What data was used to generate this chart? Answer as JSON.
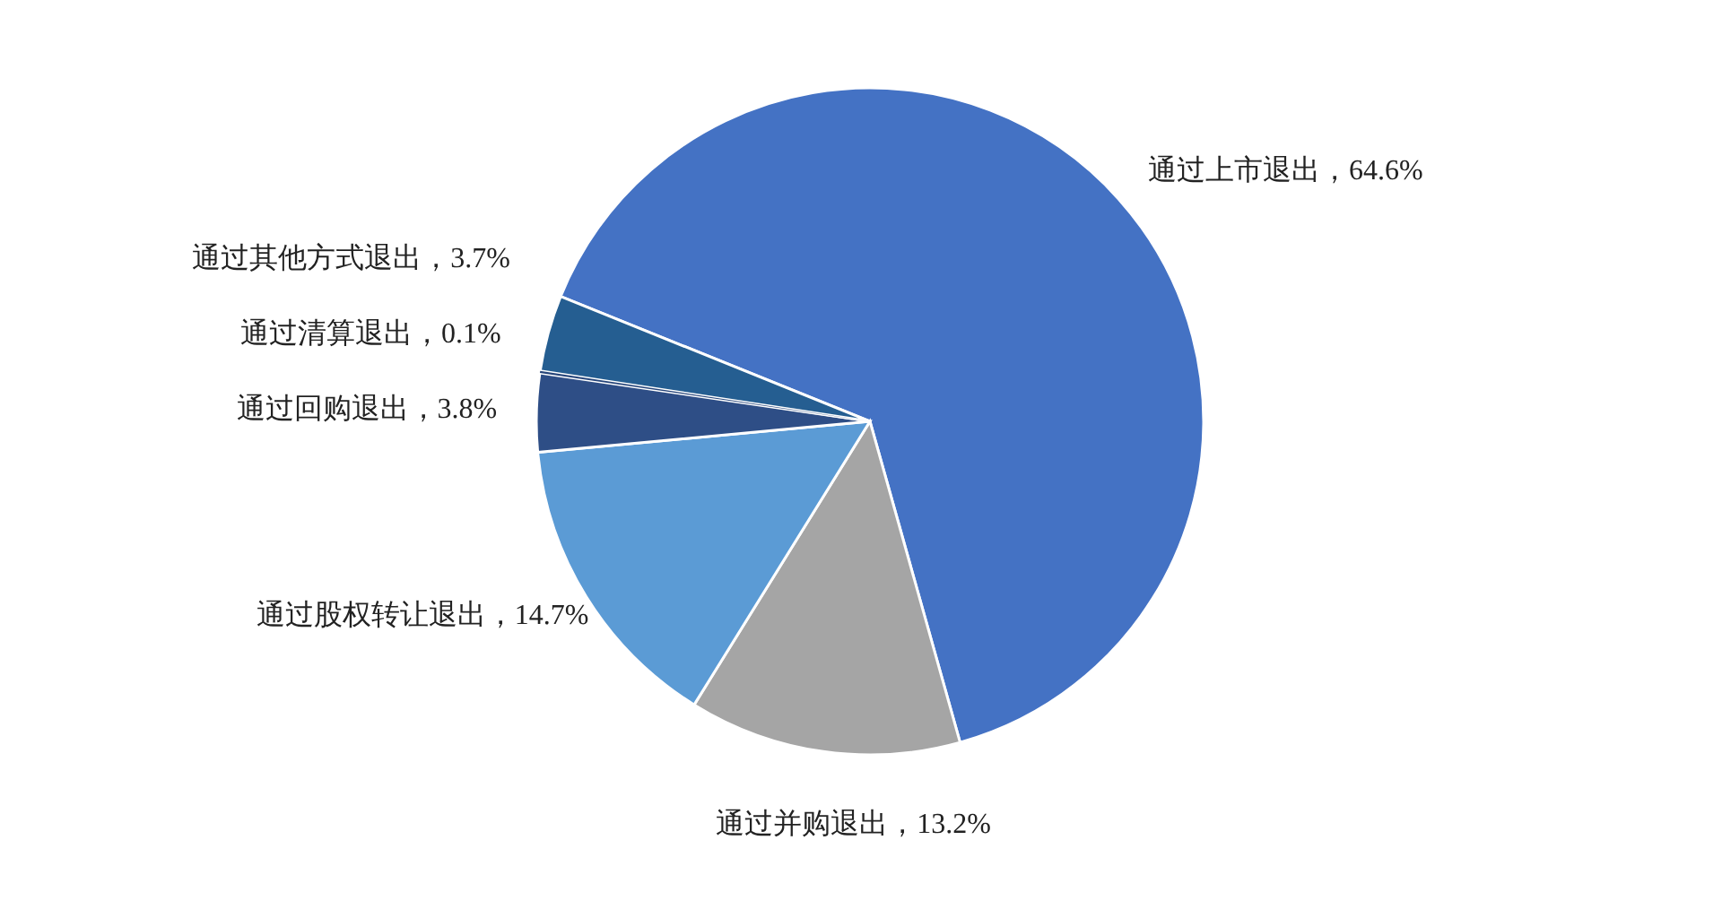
{
  "chart_data": {
    "type": "pie",
    "categories": [
      "通过上市退出",
      "通过并购退出",
      "通过股权转让退出",
      "通过回购退出",
      "通过清算退出",
      "通过其他方式退出"
    ],
    "values": [
      64.6,
      13.2,
      14.7,
      3.8,
      0.1,
      3.7
    ],
    "value_labels": [
      "64.6%",
      "13.2%",
      "14.7%",
      "3.8%",
      "0.1%",
      "3.7%"
    ],
    "colors": [
      "#4472c4",
      "#a5a5a5",
      "#5b9bd5",
      "#2e4e86",
      "#26457a",
      "#255e91"
    ],
    "legend": false
  }
}
